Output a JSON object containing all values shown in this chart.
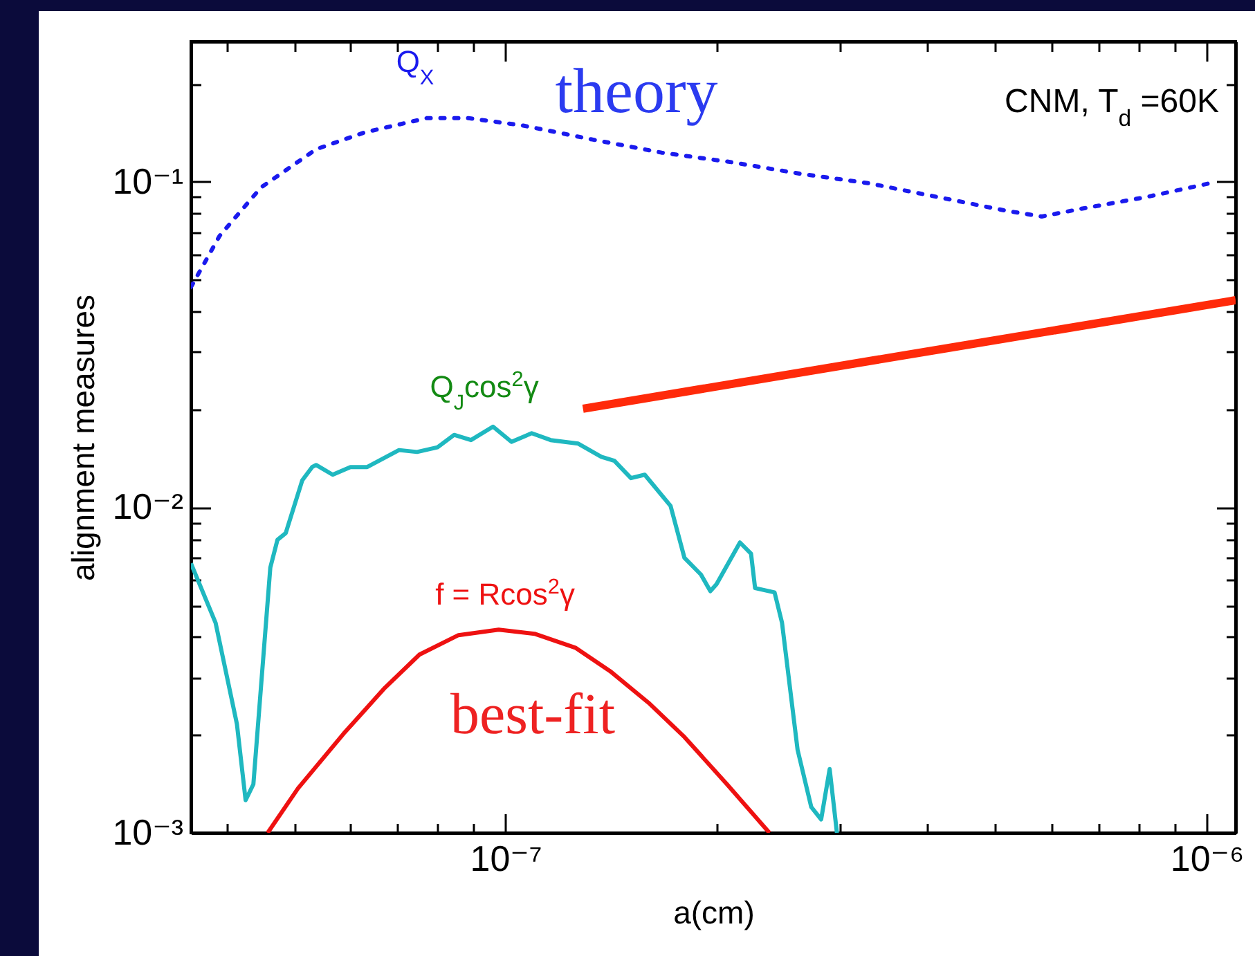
{
  "chart_data": {
    "type": "line",
    "xlabel": "a(cm)",
    "ylabel": "alignment measures",
    "log": "xy",
    "grid": false,
    "xlim": [
      3.56e-08,
      1.1e-06
    ],
    "ylim": [
      0.001,
      0.27
    ],
    "xticks": [
      {
        "value": 4e-08,
        "label": null
      },
      {
        "value": 5e-08,
        "label": null
      },
      {
        "value": 6e-08,
        "label": null
      },
      {
        "value": 7e-08,
        "label": null
      },
      {
        "value": 8e-08,
        "label": null
      },
      {
        "value": 9e-08,
        "label": null
      },
      {
        "value": 1e-07,
        "label": "10⁻⁷"
      },
      {
        "value": 2e-07,
        "label": null
      },
      {
        "value": 3e-07,
        "label": null
      },
      {
        "value": 4e-07,
        "label": null
      },
      {
        "value": 5e-07,
        "label": null
      },
      {
        "value": 6e-07,
        "label": null
      },
      {
        "value": 7e-07,
        "label": null
      },
      {
        "value": 8e-07,
        "label": null
      },
      {
        "value": 9e-07,
        "label": null
      },
      {
        "value": 1e-06,
        "label": "10⁻⁶"
      }
    ],
    "yticks": [
      {
        "value": 0.001,
        "label": "10⁻³"
      },
      {
        "value": 0.002,
        "label": null
      },
      {
        "value": 0.003,
        "label": null
      },
      {
        "value": 0.004,
        "label": null
      },
      {
        "value": 0.005,
        "label": null
      },
      {
        "value": 0.006,
        "label": null
      },
      {
        "value": 0.007,
        "label": null
      },
      {
        "value": 0.008,
        "label": null
      },
      {
        "value": 0.009,
        "label": null
      },
      {
        "value": 0.01,
        "label": "10⁻²"
      },
      {
        "value": 0.02,
        "label": null
      },
      {
        "value": 0.03,
        "label": null
      },
      {
        "value": 0.04,
        "label": null
      },
      {
        "value": 0.05,
        "label": null
      },
      {
        "value": 0.06,
        "label": null
      },
      {
        "value": 0.07,
        "label": null
      },
      {
        "value": 0.08,
        "label": null
      },
      {
        "value": 0.09,
        "label": null
      },
      {
        "value": 0.1,
        "label": "10⁻¹"
      },
      {
        "value": 0.2,
        "label": null
      }
    ],
    "series": [
      {
        "color": "#1a1aee",
        "line_style": "dotted",
        "x": [
          3.56e-08,
          3.91e-08,
          4.48e-08,
          5.37e-08,
          6.3e-08,
          7.72e-08,
          8.85e-08,
          1.06e-07,
          1.33e-07,
          1.67e-07,
          2.1e-07,
          2.63e-07,
          3.3e-07,
          4.14e-07,
          5.2e-07,
          5.82e-07,
          6.53e-07,
          8.19e-07,
          1.01e-06
        ],
        "values": [
          0.0475,
          0.0682,
          0.0961,
          0.126,
          0.142,
          0.157,
          0.157,
          0.149,
          0.135,
          0.123,
          0.115,
          0.106,
          0.099,
          0.0898,
          0.0814,
          0.0783,
          0.0822,
          0.0898,
          0.099
        ]
      },
      {
        "color": "#ff2a0a",
        "line_style": "solid",
        "x": [
          1.29e-07,
          1.1e-06
        ],
        "values": [
          0.0201,
          0.0433
        ]
      },
      {
        "color": "#1fb8c0",
        "line_style": "solid",
        "x": [
          3.56e-08,
          3.86e-08,
          4.14e-08,
          4.26e-08,
          4.37e-08,
          4.62e-08,
          4.73e-08,
          4.86e-08,
          5.13e-08,
          5.3e-08,
          5.37e-08,
          5.67e-08,
          6.01e-08,
          6.35e-08,
          7.05e-08,
          7.48e-08,
          8e-08,
          8.45e-08,
          8.93e-08,
          9.6e-08,
          1.02e-07,
          1.09e-07,
          1.16e-07,
          1.27e-07,
          1.37e-07,
          1.43e-07,
          1.51e-07,
          1.58e-07,
          1.72e-07,
          1.8e-07,
          1.9e-07,
          1.96e-07,
          2e-07,
          2.16e-07,
          2.24e-07,
          2.27e-07,
          2.42e-07,
          2.48e-07,
          2.61e-07,
          2.73e-07,
          2.82e-07,
          2.9e-07,
          2.97e-07
        ],
        "values": [
          0.00673,
          0.00442,
          0.00216,
          0.00126,
          0.00141,
          0.00653,
          0.00795,
          0.00834,
          0.0121,
          0.0133,
          0.0135,
          0.0126,
          0.0133,
          0.0133,
          0.015,
          0.0148,
          0.0153,
          0.0167,
          0.0161,
          0.0177,
          0.0159,
          0.0169,
          0.0161,
          0.0157,
          0.0143,
          0.0139,
          0.0123,
          0.0126,
          0.0101,
          0.007,
          0.00622,
          0.00553,
          0.00581,
          0.0078,
          0.00721,
          0.00565,
          0.00548,
          0.00442,
          0.0018,
          0.0012,
          0.0011,
          0.00157,
          0.001
        ]
      },
      {
        "color": "#ee1111",
        "line_style": "solid",
        "x": [
          4.58e-08,
          5.06e-08,
          5.88e-08,
          6.73e-08,
          7.54e-08,
          8.57e-08,
          9.78e-08,
          1.1e-07,
          1.26e-07,
          1.41e-07,
          1.6e-07,
          1.8e-07,
          2.07e-07,
          2.38e-07
        ],
        "values": [
          0.001,
          0.00137,
          0.00202,
          0.00279,
          0.00353,
          0.00405,
          0.00421,
          0.00409,
          0.0037,
          0.00314,
          0.00251,
          0.00197,
          0.00141,
          0.001
        ]
      }
    ],
    "annotations": [
      "Q$_{X}$",
      "theory",
      "CNM, T$_{d}$ =60K",
      "Q$_{J}$cos$^{2}$γ",
      "f = Rcos$^{2}$γ",
      "best-fit"
    ]
  }
}
